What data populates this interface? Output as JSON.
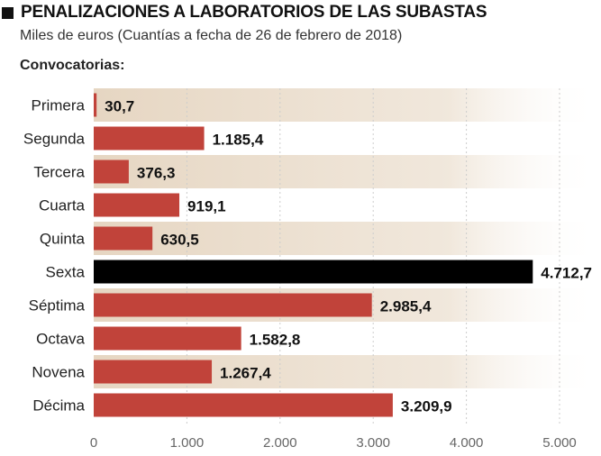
{
  "header": {
    "title": "PENALIZACIONES A LABORATORIOS DE LAS SUBASTAS",
    "subtitle": "Miles de euros (Cuantías a fecha de 26 de febrero de 2018)",
    "section_label": "Convocatorias:"
  },
  "colors": {
    "bar": "#c1433a",
    "highlight_bar": "#000000",
    "band": "#e9dccb",
    "grid": "#cccccc"
  },
  "chart_data": {
    "type": "bar",
    "orientation": "horizontal",
    "title": "PENALIZACIONES A LABORATORIOS DE LAS SUBASTAS",
    "subtitle": "Miles de euros (Cuantías a fecha de 26 de febrero de 2018)",
    "categories": [
      "Primera",
      "Segunda",
      "Tercera",
      "Cuarta",
      "Quinta",
      "Sexta",
      "Séptima",
      "Octava",
      "Novena",
      "Décima"
    ],
    "values": [
      30.7,
      1185.4,
      376.3,
      919.1,
      630.5,
      4712.7,
      2985.4,
      1582.8,
      1267.4,
      3209.9
    ],
    "value_labels": [
      "30,7",
      "1.185,4",
      "376,3",
      "919,1",
      "630,5",
      "4.712,7",
      "2.985,4",
      "1.582,8",
      "1.267,4",
      "3.209,9"
    ],
    "highlight_category": "Sexta",
    "xlim": [
      0,
      5000
    ],
    "ticks": [
      0,
      1000,
      2000,
      3000,
      4000,
      5000
    ],
    "tick_labels": [
      "0",
      "1.000",
      "2.000",
      "3.000",
      "4.000",
      "5.000"
    ],
    "grid": true,
    "legend": "none"
  }
}
